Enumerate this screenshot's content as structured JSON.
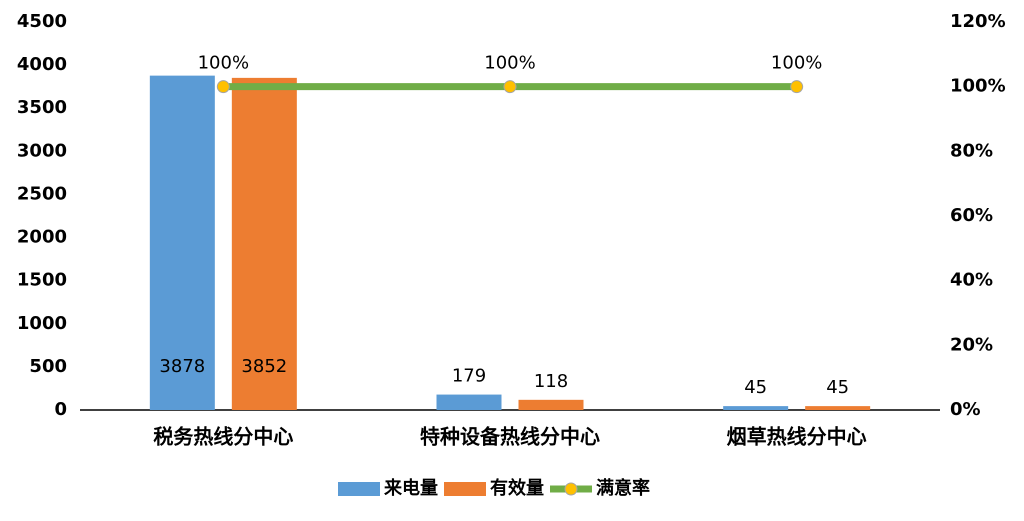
{
  "chart_data": {
    "type": "bar",
    "categories": [
      "税务热线分中心",
      "特种设备热线分中心",
      "烟草热线分中心"
    ],
    "series": [
      {
        "name": "来电量",
        "type": "bar",
        "color": "#5b9bd5",
        "values": [
          3878,
          179,
          45
        ]
      },
      {
        "name": "有效量",
        "type": "bar",
        "color": "#ed7d31",
        "values": [
          3852,
          118,
          45
        ]
      },
      {
        "name": "满意率",
        "type": "line",
        "axis": "y2",
        "color": "#70ad47",
        "marker_color": "#ffc000",
        "values": [
          100,
          100,
          100
        ],
        "value_labels": [
          "100%",
          "100%",
          "100%"
        ]
      }
    ],
    "ylim": [
      0,
      4500
    ],
    "yticks": [
      0,
      500,
      1000,
      1500,
      2000,
      2500,
      3000,
      3500,
      4000,
      4500
    ],
    "y2lim": [
      0,
      120
    ],
    "y2ticks": [
      {
        "value": 0,
        "label": "0%"
      },
      {
        "value": 20,
        "label": "20%"
      },
      {
        "value": 40,
        "label": "40%"
      },
      {
        "value": 60,
        "label": "60%"
      },
      {
        "value": 80,
        "label": "80%"
      },
      {
        "value": 100,
        "label": "100%"
      },
      {
        "value": 120,
        "label": "120%"
      }
    ],
    "legend": "bottom"
  }
}
